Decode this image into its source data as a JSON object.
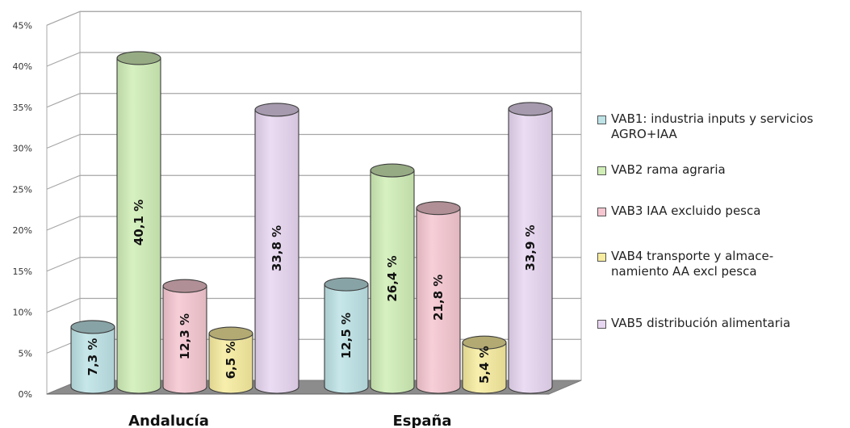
{
  "chart_data": {
    "type": "bar",
    "categories": [
      "Andalucía",
      "España"
    ],
    "ylim": [
      0,
      45
    ],
    "yticks": [
      "0%",
      "5%",
      "10%",
      "15%",
      "20%",
      "25%",
      "30%",
      "35%",
      "40%",
      "45%"
    ],
    "grid": true,
    "legend_placement": "right",
    "series": [
      {
        "name": "VAB1: industria inputs y servicios\nAGRO+IAA",
        "values": [
          7.3,
          12.5
        ],
        "labels": [
          "7,3 %",
          "12,5 %"
        ],
        "color": "#bde3e6"
      },
      {
        "name": "VAB2 rama agraria",
        "values": [
          40.1,
          26.4
        ],
        "labels": [
          "40,1 %",
          "26,4 %"
        ],
        "color": "#d0eeb6"
      },
      {
        "name": "VAB3 IAA excluido pesca",
        "values": [
          12.3,
          21.8
        ],
        "labels": [
          "12,3 %",
          "21,8 %"
        ],
        "color": "#f6c7d1"
      },
      {
        "name": "VAB4 transporte y almace-\nnamiento AA excl pesca",
        "values": [
          6.5,
          5.4
        ],
        "labels": [
          "6,5 %",
          "5,4 %"
        ],
        "color": "#f7ec9f"
      },
      {
        "name": "VAB5 distribución alimentaria",
        "values": [
          33.8,
          33.9
        ],
        "labels": [
          "33,8 %",
          "33,9 %"
        ],
        "color": "#e7d6f1"
      }
    ]
  }
}
